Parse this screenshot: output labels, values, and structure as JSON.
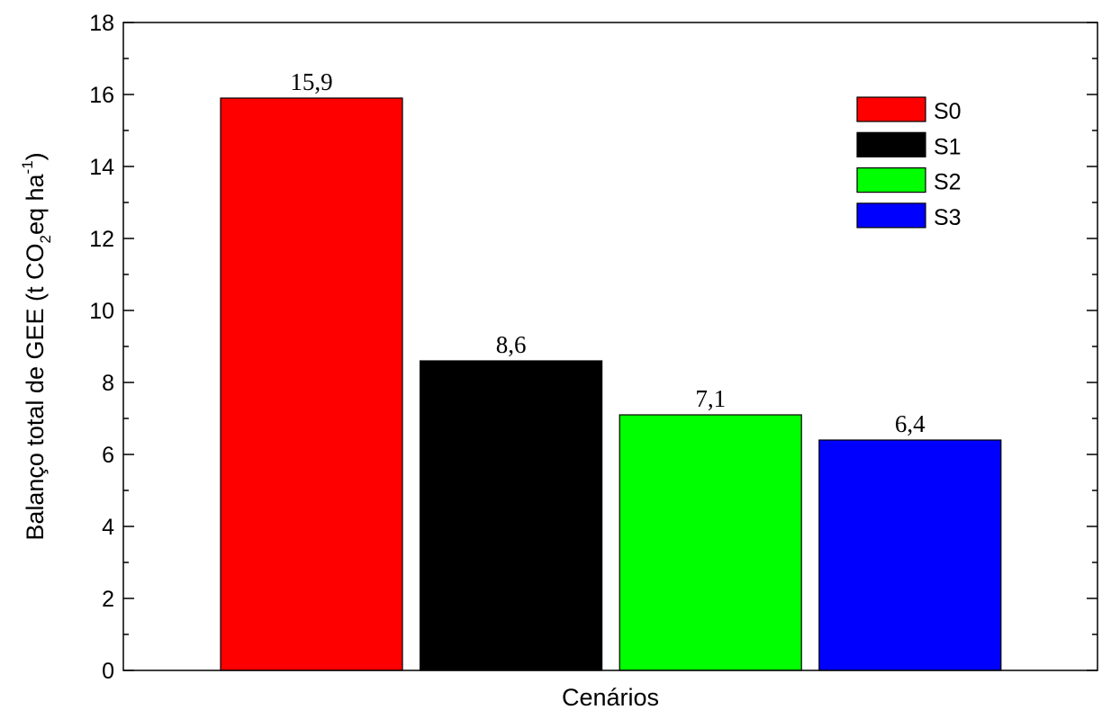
{
  "chart_data": {
    "type": "bar",
    "categories": [
      "S0",
      "S1",
      "S2",
      "S3"
    ],
    "values": [
      15.9,
      8.6,
      7.1,
      6.4
    ],
    "data_labels": [
      "15,9",
      "8,6",
      "7,1",
      "6,4"
    ],
    "colors": [
      "#ff0000",
      "#000000",
      "#00ff00",
      "#0000ff"
    ],
    "xlabel": "Cenários",
    "ylabel": {
      "prefix": "Balanço total de GEE (t CO",
      "sub": "2",
      "middle": "eq ha",
      "sup": "-1",
      "suffix": ")"
    },
    "ylim": [
      0,
      18
    ],
    "yticks": [
      0,
      2,
      4,
      6,
      8,
      10,
      12,
      14,
      16,
      18
    ],
    "grid": false,
    "legend": {
      "position": "top-right",
      "entries": [
        "S0",
        "S1",
        "S2",
        "S3"
      ]
    }
  }
}
